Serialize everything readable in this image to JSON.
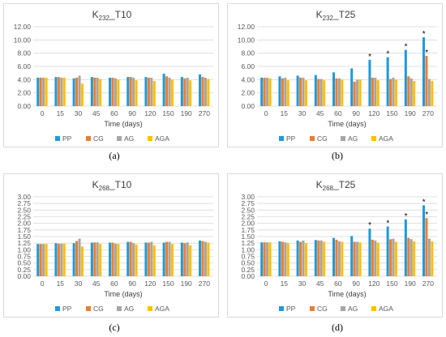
{
  "captions": [
    "(a)",
    "(b)",
    "(c)",
    "(d)"
  ],
  "legend": [
    {
      "name": "PP",
      "color": "#1f9bd6"
    },
    {
      "name": "CG",
      "color": "#ed7d31"
    },
    {
      "name": "AG",
      "color": "#a5a5a5"
    },
    {
      "name": "AGA",
      "color": "#ffc000"
    }
  ],
  "chart_data": [
    {
      "type": "bar",
      "title_main": "K",
      "title_sub": "232",
      "title_rest": "_T10",
      "xlabel": "Time (days)",
      "ylim": [
        0,
        12
      ],
      "yticks": [
        "0.00",
        "2.00",
        "4.00",
        "6.00",
        "8.00",
        "10.00",
        "12.00"
      ],
      "categories": [
        "0",
        "15",
        "30",
        "45",
        "60",
        "90",
        "120",
        "150",
        "190",
        "270"
      ],
      "series": [
        {
          "name": "PP",
          "values": [
            4.3,
            4.4,
            4.2,
            4.4,
            4.3,
            4.4,
            4.4,
            4.9,
            4.4,
            4.8
          ]
        },
        {
          "name": "CG",
          "values": [
            4.3,
            4.4,
            4.3,
            4.3,
            4.3,
            4.4,
            4.3,
            4.5,
            4.2,
            4.4
          ]
        },
        {
          "name": "AG",
          "values": [
            4.3,
            4.3,
            4.6,
            4.3,
            4.2,
            4.3,
            4.3,
            4.3,
            4.3,
            4.3
          ]
        },
        {
          "name": "AGA",
          "values": [
            4.3,
            4.3,
            3.4,
            4.1,
            4.0,
            3.9,
            3.8,
            4.0,
            3.9,
            4.1
          ]
        }
      ],
      "asterisks": []
    },
    {
      "type": "bar",
      "title_main": "K",
      "title_sub": "232",
      "title_rest": "_T25",
      "xlabel": "Time (days)",
      "ylim": [
        0,
        12
      ],
      "yticks": [
        "0.00",
        "2.00",
        "4.00",
        "6.00",
        "8.00",
        "10.00",
        "12.00"
      ],
      "categories": [
        "0",
        "15",
        "30",
        "45",
        "60",
        "90",
        "120",
        "150",
        "190",
        "270"
      ],
      "series": [
        {
          "name": "PP",
          "values": [
            4.3,
            4.5,
            4.6,
            4.7,
            5.1,
            5.7,
            7.0,
            7.4,
            8.5,
            10.4
          ]
        },
        {
          "name": "CG",
          "values": [
            4.3,
            4.2,
            4.3,
            4.1,
            4.2,
            3.7,
            4.3,
            4.1,
            4.5,
            7.6
          ]
        },
        {
          "name": "AG",
          "values": [
            4.3,
            4.3,
            4.3,
            4.1,
            4.2,
            4.0,
            4.3,
            4.3,
            4.2,
            4.1
          ]
        },
        {
          "name": "AGA",
          "values": [
            4.2,
            3.9,
            3.9,
            3.9,
            4.0,
            4.0,
            3.9,
            4.0,
            3.8,
            3.8
          ]
        }
      ],
      "asterisks": [
        {
          "series": "PP",
          "category": "120"
        },
        {
          "series": "PP",
          "category": "150"
        },
        {
          "series": "PP",
          "category": "190"
        },
        {
          "series": "PP",
          "category": "270"
        },
        {
          "series": "CG",
          "category": "270"
        }
      ]
    },
    {
      "type": "bar",
      "title_main": "K",
      "title_sub": "268",
      "title_rest": "_T10",
      "xlabel": "Time (days)",
      "ylim": [
        0,
        3
      ],
      "yticks": [
        "0.00",
        "0.25",
        "0.50",
        "0.75",
        "1.00",
        "1.25",
        "1.50",
        "1.75",
        "2.00",
        "2.25",
        "2.50",
        "2.75",
        "3.00"
      ],
      "categories": [
        "0",
        "15",
        "30",
        "45",
        "60",
        "90",
        "120",
        "150",
        "190",
        "270"
      ],
      "series": [
        {
          "name": "PP",
          "values": [
            1.22,
            1.25,
            1.25,
            1.27,
            1.27,
            1.3,
            1.27,
            1.27,
            1.27,
            1.35
          ]
        },
        {
          "name": "CG",
          "values": [
            1.22,
            1.23,
            1.33,
            1.28,
            1.27,
            1.3,
            1.27,
            1.3,
            1.25,
            1.33
          ]
        },
        {
          "name": "AG",
          "values": [
            1.22,
            1.23,
            1.42,
            1.28,
            1.23,
            1.25,
            1.3,
            1.3,
            1.28,
            1.3
          ]
        },
        {
          "name": "AGA",
          "values": [
            1.22,
            1.23,
            1.12,
            1.22,
            1.22,
            1.2,
            1.17,
            1.22,
            1.17,
            1.27
          ]
        }
      ],
      "asterisks": []
    },
    {
      "type": "bar",
      "title_main": "K",
      "title_sub": "268",
      "title_rest": "_T25",
      "xlabel": "Time (days)",
      "ylim": [
        0,
        3
      ],
      "yticks": [
        "0.00",
        "0.25",
        "0.50",
        "0.75",
        "1.00",
        "1.25",
        "1.50",
        "1.75",
        "2.00",
        "2.25",
        "2.50",
        "2.75",
        "3.00"
      ],
      "categories": [
        "0",
        "15",
        "30",
        "45",
        "60",
        "90",
        "120",
        "150",
        "190",
        "270"
      ],
      "series": [
        {
          "name": "PP",
          "values": [
            1.28,
            1.32,
            1.35,
            1.37,
            1.45,
            1.52,
            1.8,
            1.88,
            2.15,
            2.68
          ]
        },
        {
          "name": "CG",
          "values": [
            1.28,
            1.3,
            1.3,
            1.35,
            1.38,
            1.3,
            1.38,
            1.4,
            1.45,
            2.2
          ]
        },
        {
          "name": "AG",
          "values": [
            1.28,
            1.28,
            1.35,
            1.35,
            1.32,
            1.3,
            1.35,
            1.42,
            1.4,
            1.42
          ]
        },
        {
          "name": "AGA",
          "values": [
            1.28,
            1.25,
            1.25,
            1.3,
            1.3,
            1.28,
            1.27,
            1.3,
            1.32,
            1.32
          ]
        }
      ],
      "asterisks": [
        {
          "series": "PP",
          "category": "120"
        },
        {
          "series": "PP",
          "category": "150"
        },
        {
          "series": "PP",
          "category": "190"
        },
        {
          "series": "PP",
          "category": "270"
        },
        {
          "series": "CG",
          "category": "270"
        }
      ]
    }
  ]
}
